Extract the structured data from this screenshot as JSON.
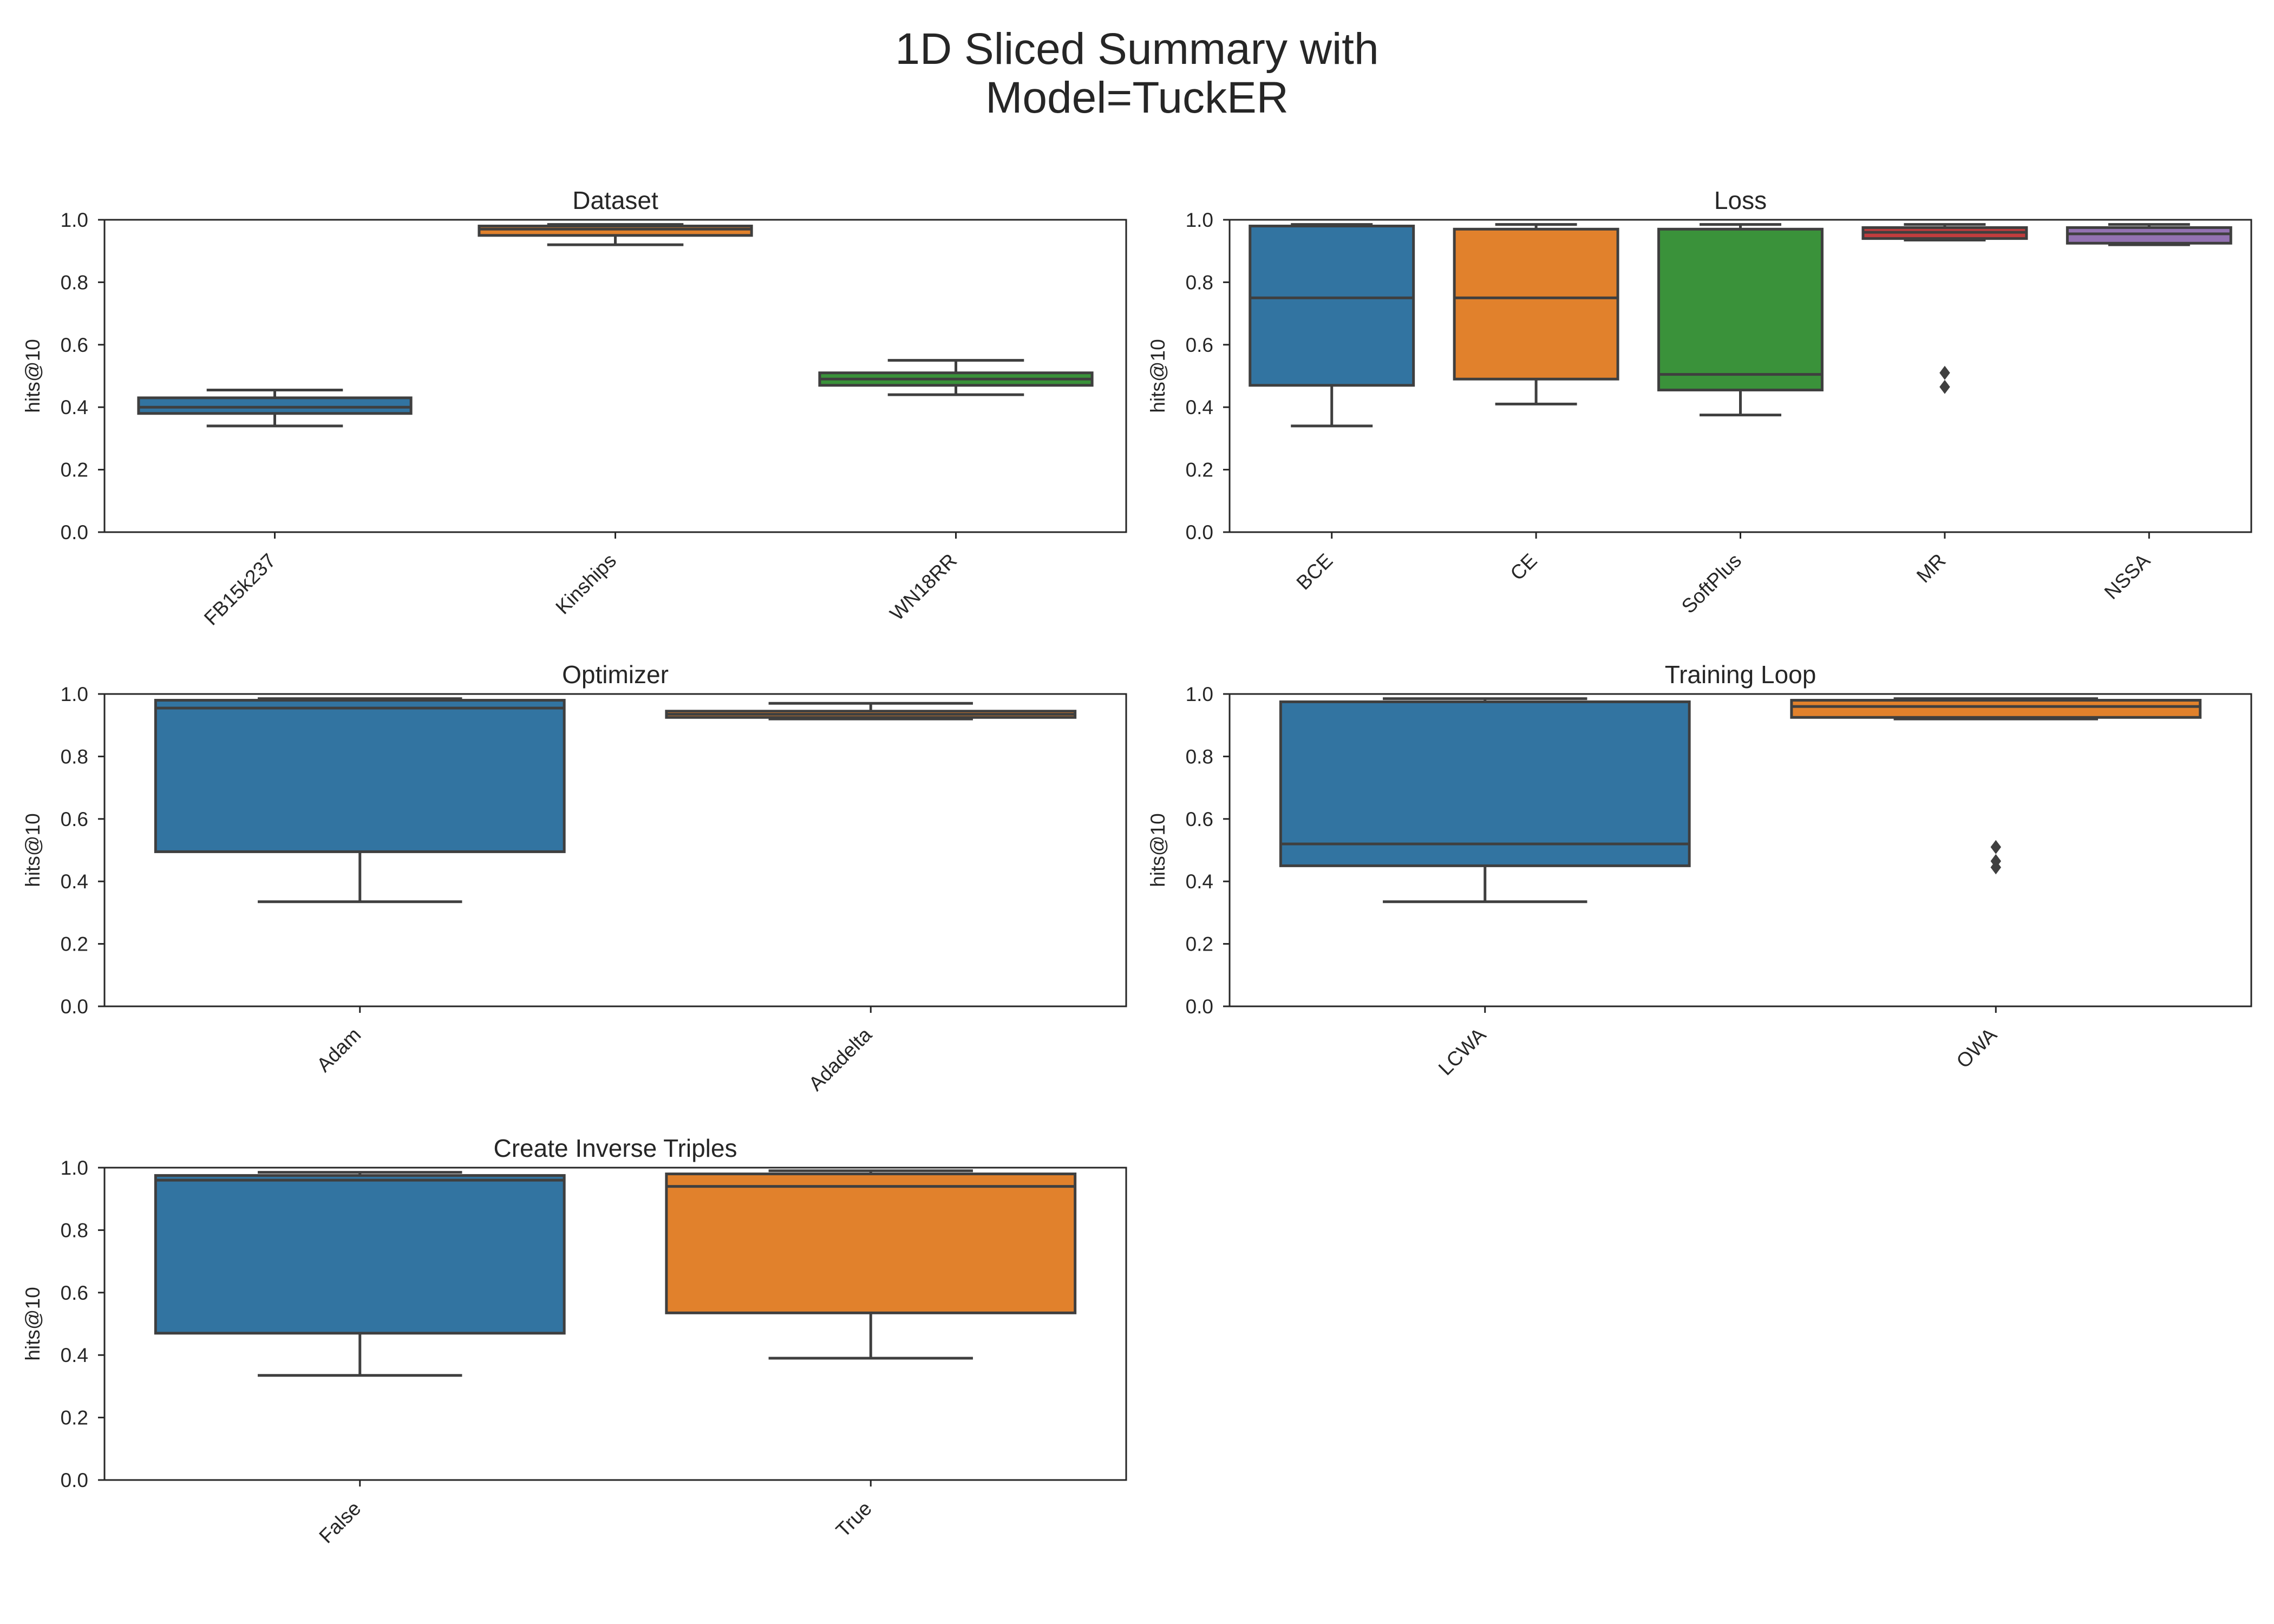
{
  "figure": {
    "title_line1": "1D Sliced Summary with",
    "title_line2": "Model=TuckER"
  },
  "chart_data": [
    {
      "type": "box",
      "title": "Dataset",
      "ylabel": "hits@10",
      "ylim": [
        0,
        1
      ],
      "yticks": [
        "0.0",
        "0.2",
        "0.4",
        "0.6",
        "0.8",
        "1.0"
      ],
      "grid": false,
      "categories": [
        "FB15k237",
        "Kinships",
        "WN18RR"
      ],
      "colors": [
        "#3274a1",
        "#e1812c",
        "#3a923a"
      ],
      "boxes": [
        {
          "whislo": 0.34,
          "q1": 0.38,
          "med": 0.4,
          "q3": 0.43,
          "whishi": 0.455,
          "fliers": []
        },
        {
          "whislo": 0.92,
          "q1": 0.95,
          "med": 0.97,
          "q3": 0.98,
          "whishi": 0.985,
          "fliers": []
        },
        {
          "whislo": 0.44,
          "q1": 0.47,
          "med": 0.49,
          "q3": 0.51,
          "whishi": 0.55,
          "fliers": []
        }
      ]
    },
    {
      "type": "box",
      "title": "Loss",
      "ylabel": "hits@10",
      "ylim": [
        0,
        1
      ],
      "yticks": [
        "0.0",
        "0.2",
        "0.4",
        "0.6",
        "0.8",
        "1.0"
      ],
      "grid": false,
      "categories": [
        "BCE",
        "CE",
        "SoftPlus",
        "MR",
        "NSSA"
      ],
      "colors": [
        "#3274a1",
        "#e1812c",
        "#3a923a",
        "#c03d3e",
        "#9372b2"
      ],
      "boxes": [
        {
          "whislo": 0.34,
          "q1": 0.47,
          "med": 0.75,
          "q3": 0.98,
          "whishi": 0.985,
          "fliers": []
        },
        {
          "whislo": 0.41,
          "q1": 0.49,
          "med": 0.75,
          "q3": 0.97,
          "whishi": 0.985,
          "fliers": []
        },
        {
          "whislo": 0.375,
          "q1": 0.455,
          "med": 0.505,
          "q3": 0.97,
          "whishi": 0.985,
          "fliers": []
        },
        {
          "whislo": 0.935,
          "q1": 0.94,
          "med": 0.96,
          "q3": 0.975,
          "whishi": 0.985,
          "fliers": [
            0.51,
            0.465
          ]
        },
        {
          "whislo": 0.92,
          "q1": 0.925,
          "med": 0.955,
          "q3": 0.975,
          "whishi": 0.985,
          "fliers": []
        }
      ]
    },
    {
      "type": "box",
      "title": "Optimizer",
      "ylabel": "hits@10",
      "ylim": [
        0,
        1
      ],
      "yticks": [
        "0.0",
        "0.2",
        "0.4",
        "0.6",
        "0.8",
        "1.0"
      ],
      "grid": false,
      "categories": [
        "Adam",
        "Adadelta"
      ],
      "colors": [
        "#3274a1",
        "#e1812c"
      ],
      "boxes": [
        {
          "whislo": 0.335,
          "q1": 0.495,
          "med": 0.955,
          "q3": 0.98,
          "whishi": 0.985,
          "fliers": []
        },
        {
          "whislo": 0.92,
          "q1": 0.925,
          "med": 0.935,
          "q3": 0.945,
          "whishi": 0.97,
          "fliers": []
        }
      ]
    },
    {
      "type": "box",
      "title": "Training Loop",
      "ylabel": "hits@10",
      "ylim": [
        0,
        1
      ],
      "yticks": [
        "0.0",
        "0.2",
        "0.4",
        "0.6",
        "0.8",
        "1.0"
      ],
      "grid": false,
      "categories": [
        "LCWA",
        "OWA"
      ],
      "colors": [
        "#3274a1",
        "#e1812c"
      ],
      "boxes": [
        {
          "whislo": 0.335,
          "q1": 0.45,
          "med": 0.52,
          "q3": 0.975,
          "whishi": 0.985,
          "fliers": []
        },
        {
          "whislo": 0.92,
          "q1": 0.925,
          "med": 0.96,
          "q3": 0.98,
          "whishi": 0.985,
          "fliers": [
            0.51,
            0.465,
            0.445
          ]
        }
      ]
    },
    {
      "type": "box",
      "title": "Create Inverse Triples",
      "ylabel": "hits@10",
      "ylim": [
        0,
        1
      ],
      "yticks": [
        "0.0",
        "0.2",
        "0.4",
        "0.6",
        "0.8",
        "1.0"
      ],
      "grid": false,
      "categories": [
        "False",
        "True"
      ],
      "colors": [
        "#3274a1",
        "#e1812c"
      ],
      "boxes": [
        {
          "whislo": 0.335,
          "q1": 0.47,
          "med": 0.96,
          "q3": 0.975,
          "whishi": 0.985,
          "fliers": []
        },
        {
          "whislo": 0.39,
          "q1": 0.535,
          "med": 0.94,
          "q3": 0.98,
          "whishi": 0.99,
          "fliers": []
        }
      ]
    }
  ]
}
